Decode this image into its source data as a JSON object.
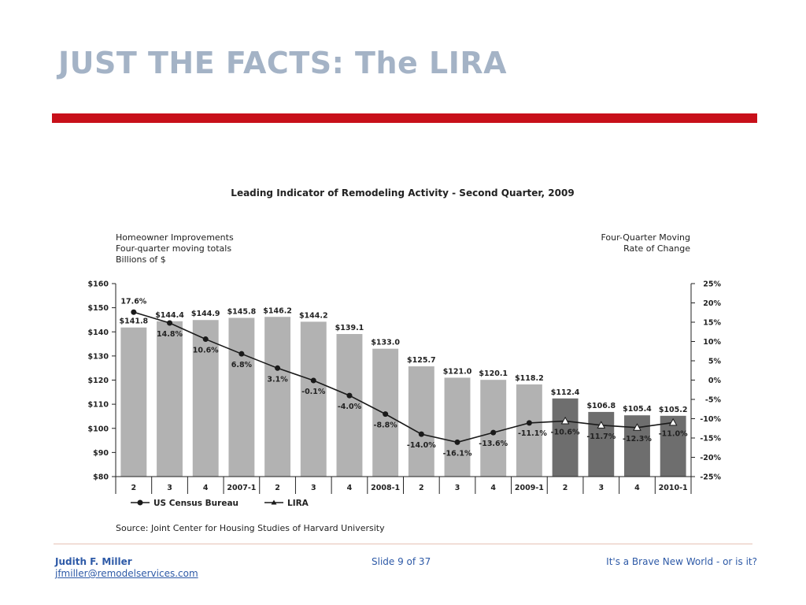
{
  "slide": {
    "title": "JUST THE FACTS: The LIRA",
    "footer": {
      "author": "Judith F. Miller",
      "email": "jfmiller@remodelservices.com",
      "slide_number": "Slide 9 of 37",
      "tagline": "It's a Brave New World - or is it?"
    }
  },
  "chart_data": {
    "type": "bar",
    "title": "Leading Indicator of Remodeling Activity - Second Quarter, 2009",
    "left_axis_caption": [
      "Homeowner Improvements",
      "Four-quarter moving totals",
      "Billions of $"
    ],
    "right_axis_caption": [
      "Four-Quarter Moving",
      "Rate of Change"
    ],
    "categories": [
      "2",
      "3",
      "4",
      "2007-1",
      "2",
      "3",
      "4",
      "2008-1",
      "2",
      "3",
      "4",
      "2009-1",
      "2",
      "3",
      "4",
      "2010-1"
    ],
    "bar_labels": [
      "$141.8",
      "$144.4",
      "$144.9",
      "$145.8",
      "$146.2",
      "$144.2",
      "$139.1",
      "$133.0",
      "$125.7",
      "$121.0",
      "$120.1",
      "$118.2",
      "$112.4",
      "$106.8",
      "$105.4",
      "$105.2"
    ],
    "series": [
      {
        "name": "US Census Bureau",
        "axis": "left",
        "kind": "bar-light",
        "values": [
          141.8,
          144.4,
          144.9,
          145.8,
          146.2,
          144.2,
          139.1,
          133.0,
          125.7,
          121.0,
          120.1,
          118.2,
          null,
          null,
          null,
          null
        ]
      },
      {
        "name": "LIRA",
        "axis": "left",
        "kind": "bar-dark",
        "values": [
          null,
          null,
          null,
          null,
          null,
          null,
          null,
          null,
          null,
          null,
          null,
          null,
          112.4,
          106.8,
          105.4,
          105.2
        ]
      },
      {
        "name": "US Census Bureau",
        "axis": "right",
        "kind": "line-dot",
        "values": [
          17.6,
          14.8,
          10.6,
          6.8,
          3.1,
          -0.1,
          -4.0,
          -8.8,
          -14.0,
          -16.1,
          -13.6,
          -11.1,
          null,
          null,
          null,
          null
        ]
      },
      {
        "name": "LIRA",
        "axis": "right",
        "kind": "line-triangle",
        "values": [
          null,
          null,
          null,
          null,
          null,
          null,
          null,
          null,
          null,
          null,
          null,
          -11.1,
          -10.6,
          -11.7,
          -12.3,
          -11.0
        ]
      }
    ],
    "line_labels": [
      "17.6%",
      "14.8%",
      "10.6%",
      "6.8%",
      "3.1%",
      "-0.1%",
      "-4.0%",
      "-8.8%",
      "-14.0%",
      "-16.1%",
      "-13.6%",
      "-11.1%",
      "-10.6%",
      "-11.7%",
      "-12.3%",
      "-11.0%"
    ],
    "ylim_left": [
      80,
      160
    ],
    "yticks_left": [
      "$160",
      "$150",
      "$140",
      "$130",
      "$120",
      "$110",
      "$100",
      "$90",
      "$80"
    ],
    "ylim_right": [
      -25,
      25
    ],
    "yticks_right": [
      "25%",
      "20%",
      "15%",
      "10%",
      "5%",
      "0%",
      "-5%",
      "-10%",
      "-15%",
      "-20%",
      "-25%"
    ],
    "legend": [
      "US Census Bureau",
      "LIRA"
    ],
    "legend_placement": "bottom-left",
    "source": "Source: Joint Center for Housing Studies of Harvard University",
    "grid": false,
    "colors": {
      "bar_light": "#b2b2b2",
      "bar_dark": "#6e6e6e",
      "line": "#1a1a1a"
    }
  }
}
